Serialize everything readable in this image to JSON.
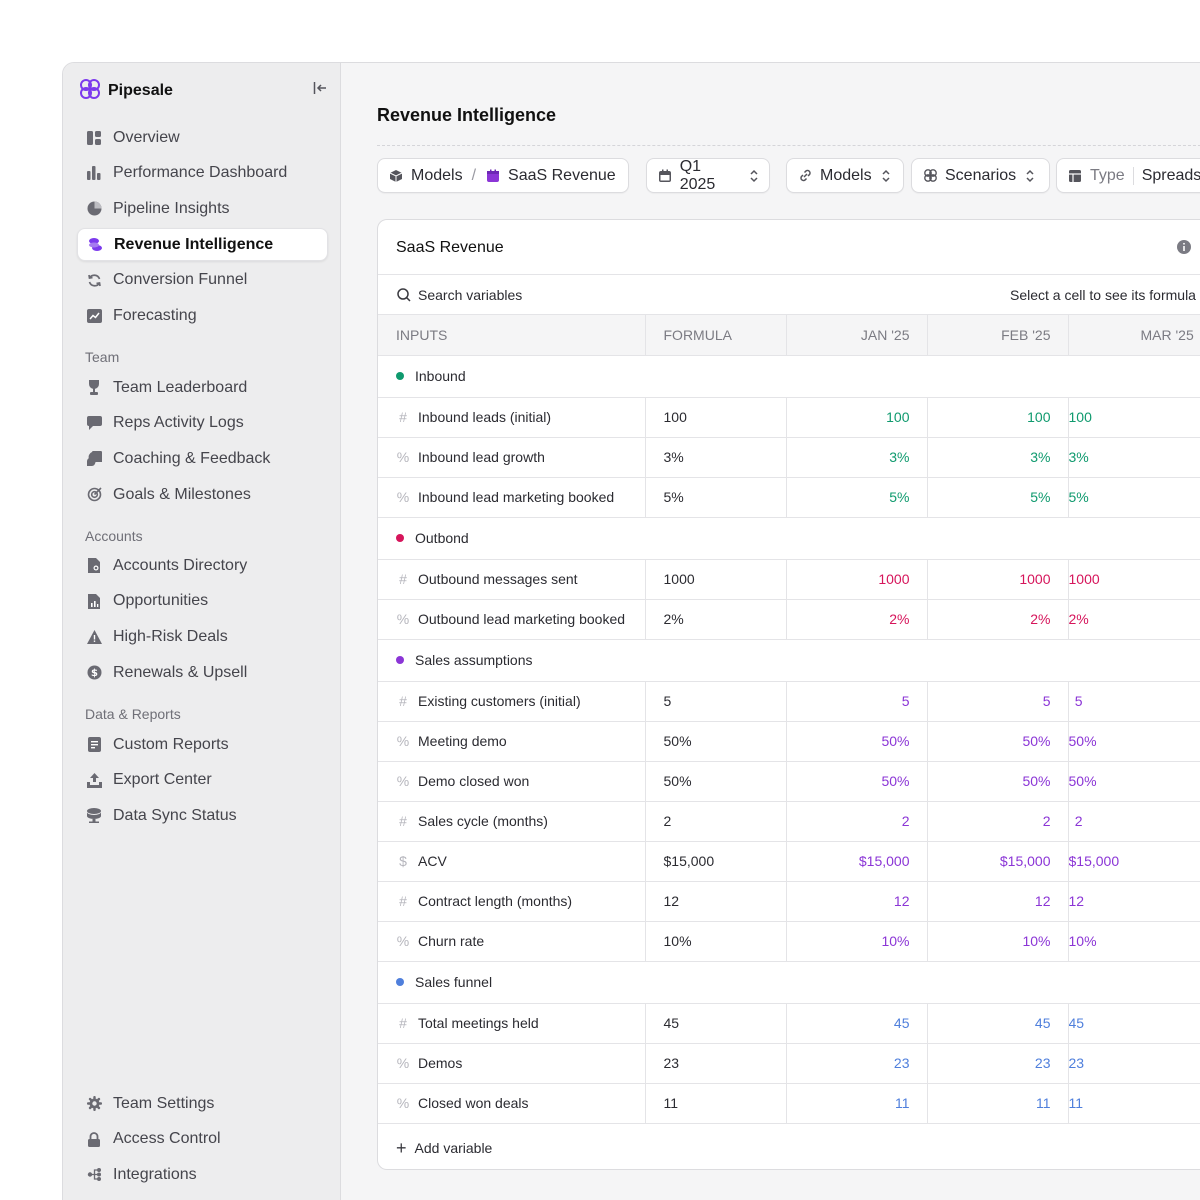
{
  "brand": {
    "name": "Pipesale",
    "accent": "#7c3aed"
  },
  "sidebar": {
    "main_items": [
      {
        "label": "Overview",
        "icon": "dashboard-icon"
      },
      {
        "label": "Performance Dashboard",
        "icon": "bar-chart-icon"
      },
      {
        "label": "Pipeline Insights",
        "icon": "pie-icon"
      },
      {
        "label": "Revenue Intelligence",
        "icon": "coins-icon",
        "active": true
      },
      {
        "label": "Conversion Funnel",
        "icon": "refresh-icon"
      },
      {
        "label": "Forecasting",
        "icon": "trend-icon"
      }
    ],
    "team_label": "Team",
    "team_items": [
      {
        "label": "Team Leaderboard",
        "icon": "trophy-icon"
      },
      {
        "label": "Reps Activity Logs",
        "icon": "message-icon"
      },
      {
        "label": "Coaching & Feedback",
        "icon": "chat-bubbles-icon"
      },
      {
        "label": "Goals & Milestones",
        "icon": "target-icon"
      }
    ],
    "accounts_label": "Accounts",
    "accounts_items": [
      {
        "label": "Accounts Directory",
        "icon": "file-search-icon"
      },
      {
        "label": "Opportunities",
        "icon": "file-chart-icon"
      },
      {
        "label": "High-Risk Deals",
        "icon": "warning-icon"
      },
      {
        "label": "Renewals & Upsell",
        "icon": "dollar-icon"
      }
    ],
    "data_label": "Data & Reports",
    "data_items": [
      {
        "label": "Custom Reports",
        "icon": "document-icon"
      },
      {
        "label": "Export Center",
        "icon": "upload-icon"
      },
      {
        "label": "Data Sync Status",
        "icon": "database-icon"
      }
    ],
    "bottom_items": [
      {
        "label": "Team Settings",
        "icon": "gear-icon"
      },
      {
        "label": "Access Control",
        "icon": "lock-icon"
      },
      {
        "label": "Integrations",
        "icon": "integrations-icon"
      }
    ]
  },
  "header": {
    "title": "Revenue Intelligence"
  },
  "toolbar": {
    "breadcrumb_root": "Models",
    "breadcrumb_sep": "/",
    "breadcrumb_current": "SaaS Revenue",
    "period": "Q1 2025",
    "models": "Models",
    "scenarios": "Scenarios",
    "type_label": "Type",
    "type_value": "Spreadsheet"
  },
  "card": {
    "title": "SaaS Revenue",
    "search_placeholder": "Search variables",
    "formula_hint": "Select a cell to see its formula",
    "add_variable": "Add variable",
    "columns": [
      "INPUTS",
      "FORMULA",
      "JAN '25",
      "FEB '25",
      "MAR '25"
    ]
  },
  "groups": [
    {
      "name": "Inbound",
      "color": "#0f9a6e",
      "rows": [
        {
          "type": "#",
          "name": "Inbound leads (initial)",
          "formula": "100",
          "values": [
            "100",
            "100",
            "100"
          ]
        },
        {
          "type": "%",
          "name": "Inbound lead growth",
          "formula": "3%",
          "values": [
            "3%",
            "3%",
            "3%"
          ]
        },
        {
          "type": "%",
          "name": "Inbound lead marketing booked",
          "formula": "5%",
          "values": [
            "5%",
            "5%",
            "5%"
          ]
        }
      ]
    },
    {
      "name": "Outbond",
      "color": "#d6155b",
      "rows": [
        {
          "type": "#",
          "name": "Outbound messages sent",
          "formula": "1000",
          "values": [
            "1000",
            "1000",
            "1000"
          ]
        },
        {
          "type": "%",
          "name": "Outbound lead marketing booked",
          "formula": "2%",
          "values": [
            "2%",
            "2%",
            "2%"
          ]
        }
      ]
    },
    {
      "name": "Sales assumptions",
      "color": "#8b35d6",
      "rows": [
        {
          "type": "#",
          "name": "Existing customers (initial)",
          "formula": "5",
          "values": [
            "5",
            "5",
            "5"
          ]
        },
        {
          "type": "%",
          "name": "Meeting demo",
          "formula": "50%",
          "values": [
            "50%",
            "50%",
            "50%"
          ]
        },
        {
          "type": "%",
          "name": "Demo closed won",
          "formula": "50%",
          "values": [
            "50%",
            "50%",
            "50%"
          ]
        },
        {
          "type": "#",
          "name": "Sales cycle (months)",
          "formula": "2",
          "values": [
            "2",
            "2",
            "2"
          ]
        },
        {
          "type": "$",
          "name": "ACV",
          "formula": "$15,000",
          "values": [
            "$15,000",
            "$15,000",
            "$15,000"
          ]
        },
        {
          "type": "#",
          "name": "Contract length (months)",
          "formula": "12",
          "values": [
            "12",
            "12",
            "12"
          ]
        },
        {
          "type": "%",
          "name": "Churn rate",
          "formula": "10%",
          "values": [
            "10%",
            "10%",
            "10%"
          ]
        }
      ]
    },
    {
      "name": "Sales funnel",
      "color": "#4f7fdc",
      "rows": [
        {
          "type": "#",
          "name": "Total meetings held",
          "formula": "45",
          "values": [
            "45",
            "45",
            "45"
          ]
        },
        {
          "type": "%",
          "name": "Demos",
          "formula": "23",
          "values": [
            "23",
            "23",
            "23"
          ]
        },
        {
          "type": "%",
          "name": "Closed won deals",
          "formula": "11",
          "values": [
            "11",
            "11",
            "11"
          ]
        }
      ]
    }
  ]
}
